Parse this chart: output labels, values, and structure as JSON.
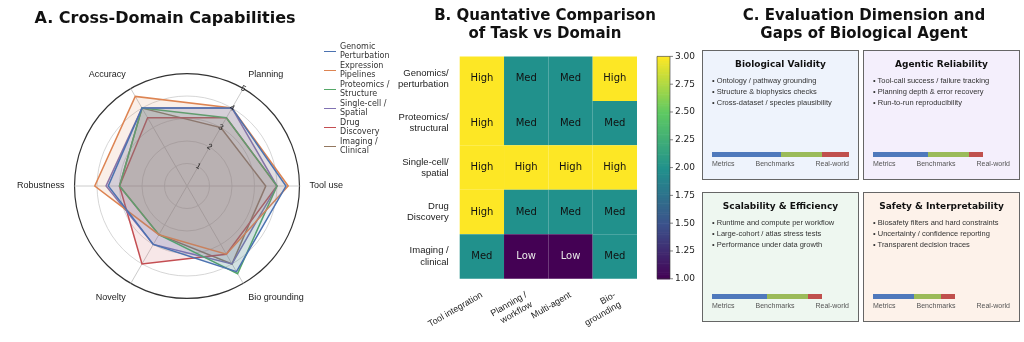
{
  "chart_data": [
    {
      "type": "radar",
      "title": "A. Cross-Domain Capabilities",
      "categories": [
        "Planning",
        "Tool use",
        "Bio grounding",
        "Novelty",
        "Robustness",
        "Accuracy"
      ],
      "series": [
        {
          "name": "Genomic Perturbation",
          "color": "#4c72b0",
          "values": [
            4.0,
            4.4,
            4.4,
            3.0,
            3.5,
            4.0
          ]
        },
        {
          "name": "Expression Pipelines",
          "color": "#dd8452",
          "values": [
            4.0,
            4.5,
            3.5,
            2.5,
            4.1,
            4.6
          ]
        },
        {
          "name": "Proteomics / Structure",
          "color": "#55a868",
          "values": [
            3.5,
            4.0,
            4.5,
            2.5,
            3.0,
            4.0
          ]
        },
        {
          "name": "Single-cell / Spatial",
          "color": "#8172b3",
          "values": [
            4.0,
            4.0,
            4.0,
            3.0,
            3.6,
            4.0
          ]
        },
        {
          "name": "Drug Discovery",
          "color": "#c44e52",
          "values": [
            3.5,
            4.0,
            3.5,
            4.0,
            3.0,
            3.5
          ]
        },
        {
          "name": "Imaging / Clinical",
          "color": "#937860",
          "values": [
            3.0,
            3.5,
            4.0,
            2.5,
            3.0,
            4.0
          ]
        }
      ],
      "ylim": [
        0,
        5
      ],
      "yticks": [
        1,
        2,
        3,
        4,
        5
      ],
      "grid": true,
      "legend": "right"
    },
    {
      "type": "heatmap",
      "title": "B. Quantative Comparison of Task vs Domain",
      "categories": [
        "Tool integration",
        "Planning /\nworkflow",
        "Multi-agent",
        "Bio-\ngrounding"
      ],
      "y_categories": [
        "Genomics/\nperturbation",
        "Proteomics/\nstructural",
        "Single-cell/\nspatial",
        "Drug\nDiscovery",
        "Imaging /\nclinical"
      ],
      "cells": [
        [
          3,
          2,
          2,
          3
        ],
        [
          3,
          2,
          2,
          2
        ],
        [
          3,
          3,
          3,
          3
        ],
        [
          3,
          2,
          2,
          2
        ],
        [
          2,
          1,
          1,
          2
        ]
      ],
      "cell_labels": [
        [
          "High",
          "Med",
          "Med",
          "High"
        ],
        [
          "High",
          "Med",
          "Med",
          "Med"
        ],
        [
          "High",
          "High",
          "High",
          "High"
        ],
        [
          "High",
          "Med",
          "Med",
          "Med"
        ],
        [
          "Med",
          "Low",
          "Low",
          "Med"
        ]
      ],
      "clim": [
        1,
        3
      ],
      "cticks": [
        {
          "value": 1,
          "label": "1.00"
        },
        {
          "value": 1.25,
          "label": "1.25"
        },
        {
          "value": 1.5,
          "label": "1.50"
        },
        {
          "value": 1.75,
          "label": "1.75"
        },
        {
          "value": 2,
          "label": "2.00"
        },
        {
          "value": 2.25,
          "label": "2.25"
        },
        {
          "value": 2.5,
          "label": "2.50"
        },
        {
          "value": 2.75,
          "label": "2.75"
        },
        {
          "value": 3,
          "label": "3.00"
        }
      ]
    },
    {
      "type": "other",
      "title": "C. Evaluation Dimension and Gaps of Biological Agent",
      "annotations": [
        "Biological Validity",
        "• Ontology / pathway grounding",
        "• Structure & biophysics checks",
        "• Cross-dataset / species plausibility",
        "Metrics",
        "Benchmarks",
        "Real-world",
        "Agentic Reliability",
        "• Tool-call success / failure tracking",
        "• Planning depth & error recovery",
        "• Run-to-run reproducibility",
        "Metrics",
        "Benchmarks",
        "Real-world",
        "Scalability & Efficiency",
        "• Runtime and compute per workflow",
        "• Large-cohort / atlas stress tests",
        "• Performance under data growth",
        "Metrics",
        "Benchmarks",
        "Real-world",
        "Safety & Interpretability",
        "• Biosafety filters and hard constraints",
        "• Uncertainty / confidence reporting",
        "• Transparent decision traces",
        "Metrics",
        "Benchmarks",
        "Real-world"
      ]
    }
  ]
}
